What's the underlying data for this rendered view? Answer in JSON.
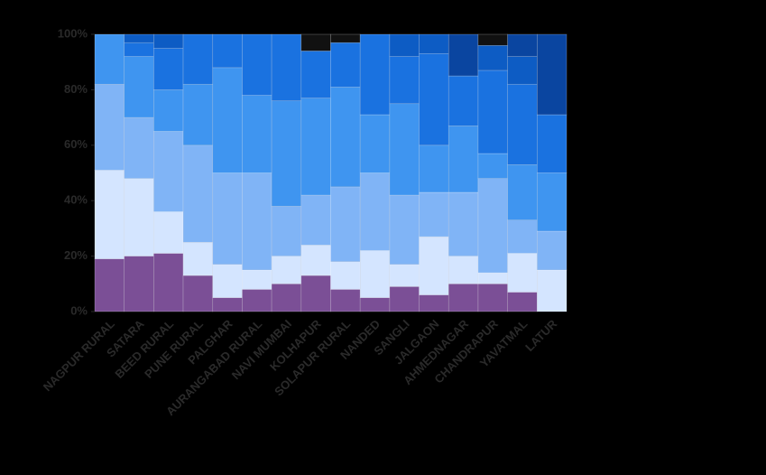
{
  "chart_data": {
    "type": "stacked_bar_percent",
    "categories": [
      "NAGPUR RURAL",
      "SATARA",
      "BEED RURAL",
      "PUNE RURAL",
      "PALGHAR",
      "AURANGABAD RURAL",
      "NAVI MUMBAI",
      "KOLHAPUR",
      "SOLAPUR RURAL",
      "NANDED",
      "SANGLI",
      "JALGAON",
      "AHMEDNAGAR",
      "CHANDRAPUR",
      "YAVATMAL",
      "LATUR"
    ],
    "series": [
      {
        "color": "#7b4f96",
        "values": [
          19,
          20,
          21,
          13,
          5,
          8,
          10,
          13,
          8,
          5,
          9,
          6,
          10,
          10,
          7,
          0
        ]
      },
      {
        "color": "#d4e5ff",
        "values": [
          32,
          28,
          15,
          12,
          12,
          7,
          10,
          11,
          10,
          17,
          8,
          21,
          10,
          4,
          14,
          15
        ]
      },
      {
        "color": "#80b4f6",
        "values": [
          31,
          22,
          29,
          35,
          33,
          35,
          18,
          18,
          27,
          28,
          25,
          16,
          23,
          34,
          12,
          14
        ]
      },
      {
        "color": "#3f95f0",
        "values": [
          18,
          22,
          15,
          22,
          38,
          28,
          38,
          35,
          36,
          21,
          33,
          17,
          24,
          9,
          20,
          21
        ]
      },
      {
        "color": "#1a72e0",
        "values": [
          0,
          5,
          15,
          18,
          12,
          22,
          24,
          17,
          16,
          29,
          17,
          33,
          18,
          30,
          29,
          21
        ]
      },
      {
        "color": "#0d5cc4",
        "values": [
          0,
          3,
          5,
          0,
          0,
          0,
          0,
          0,
          0,
          0,
          8,
          7,
          0,
          9,
          10,
          0
        ]
      },
      {
        "color": "#0a45a0",
        "values": [
          0,
          0,
          0,
          0,
          0,
          0,
          0,
          0,
          0,
          0,
          0,
          0,
          15,
          0,
          8,
          29
        ]
      },
      {
        "color": "#111111",
        "values": [
          0,
          0,
          0,
          0,
          0,
          0,
          0,
          6,
          3,
          0,
          0,
          0,
          0,
          4,
          0,
          0
        ]
      }
    ],
    "ylim": [
      0,
      100
    ],
    "yticks": [
      {
        "value": 0,
        "label": "0%"
      },
      {
        "value": 20,
        "label": "20%"
      },
      {
        "value": 40,
        "label": "40%"
      },
      {
        "value": 60,
        "label": "60%"
      },
      {
        "value": 80,
        "label": "80%"
      },
      {
        "value": 100,
        "label": "100%"
      }
    ]
  }
}
